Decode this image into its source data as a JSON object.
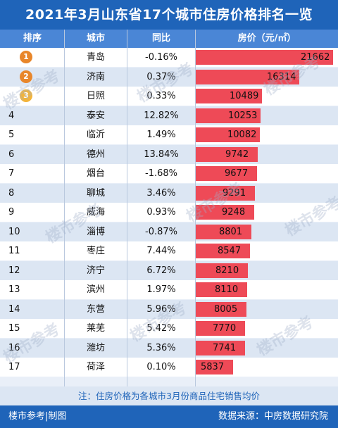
{
  "title": "2021年3月山东省17个城市住房价格排名一览",
  "headers": {
    "rank": "排序",
    "city": "城市",
    "yoy": "同比",
    "price": "房价（元/㎡）"
  },
  "colors": {
    "title_bg": "#1f64b9",
    "header_bg": "#4a86d6",
    "bar": "#ee4a57",
    "medal_1": "#e8862a",
    "medal_2": "#e8862a",
    "medal_3": "#f3b43a"
  },
  "chart_data": {
    "type": "bar",
    "orientation": "horizontal",
    "title": "2021年3月山东省17个城市住房价格排名一览",
    "ylabel": "房价（元/㎡）",
    "rows": [
      {
        "rank": "1",
        "city": "青岛",
        "yoy": "-0.16%",
        "price": 21662
      },
      {
        "rank": "2",
        "city": "济南",
        "yoy": "0.37%",
        "price": 16314
      },
      {
        "rank": "3",
        "city": "日照",
        "yoy": "0.33%",
        "price": 10489
      },
      {
        "rank": "4",
        "city": "泰安",
        "yoy": "12.82%",
        "price": 10253
      },
      {
        "rank": "5",
        "city": "临沂",
        "yoy": "1.49%",
        "price": 10082
      },
      {
        "rank": "6",
        "city": "德州",
        "yoy": "13.84%",
        "price": 9742
      },
      {
        "rank": "7",
        "city": "烟台",
        "yoy": "-1.68%",
        "price": 9677
      },
      {
        "rank": "8",
        "city": "聊城",
        "yoy": "3.46%",
        "price": 9291
      },
      {
        "rank": "9",
        "city": "威海",
        "yoy": "0.93%",
        "price": 9248
      },
      {
        "rank": "10",
        "city": "淄博",
        "yoy": "-0.87%",
        "price": 8801
      },
      {
        "rank": "11",
        "city": "枣庄",
        "yoy": "7.44%",
        "price": 8547
      },
      {
        "rank": "12",
        "city": "济宁",
        "yoy": "6.72%",
        "price": 8210
      },
      {
        "rank": "13",
        "city": "滨州",
        "yoy": "1.97%",
        "price": 8110
      },
      {
        "rank": "14",
        "city": "东营",
        "yoy": "5.96%",
        "price": 8005
      },
      {
        "rank": "15",
        "city": "莱芜",
        "yoy": "5.42%",
        "price": 7770
      },
      {
        "rank": "16",
        "city": "潍坊",
        "yoy": "5.36%",
        "price": 7741
      },
      {
        "rank": "17",
        "city": "荷泽",
        "yoy": "0.10%",
        "price": 5837
      }
    ]
  },
  "note": "注：住房价格为各城市3月份商品住宅销售均价",
  "footer": {
    "left": "楼市参考|制图",
    "right": "数据来源：中房数据研究院"
  },
  "watermark": "楼市参考"
}
